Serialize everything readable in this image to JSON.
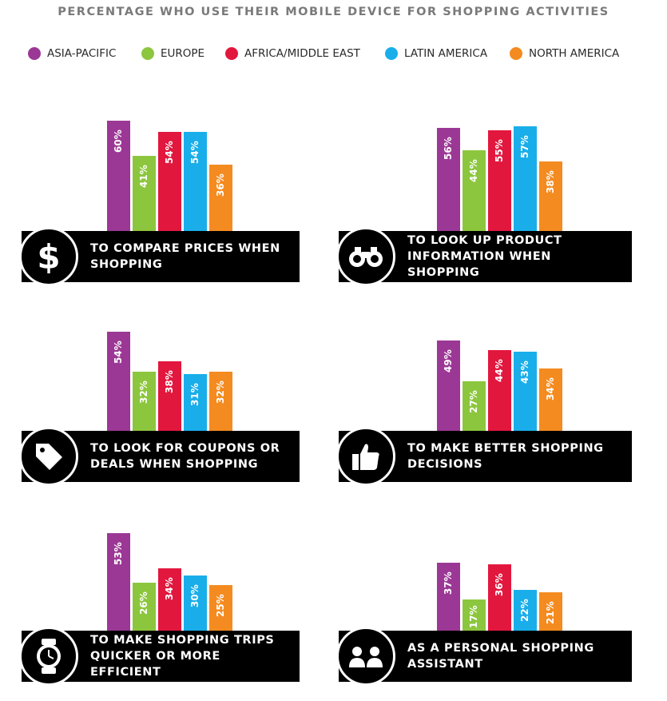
{
  "title": "PERCENTAGE WHO USE THEIR MOBILE DEVICE FOR SHOPPING ACTIVITIES",
  "legend": [
    {
      "label": "ASIA-PACIFIC",
      "color": "#9b3895"
    },
    {
      "label": "EUROPE",
      "color": "#8cc63e"
    },
    {
      "label": "AFRICA/MIDDLE EAST",
      "color": "#e2173e"
    },
    {
      "label": "LATIN AMERICA",
      "color": "#19aeea"
    },
    {
      "label": "NORTH AMERICA",
      "color": "#f48b20"
    }
  ],
  "chart_data": [
    {
      "type": "bar",
      "caption": "TO COMPARE PRICES WHEN SHOPPING",
      "icon": "dollar-icon",
      "categories": [
        "ASIA-PACIFIC",
        "EUROPE",
        "AFRICA/MIDDLE EAST",
        "LATIN AMERICA",
        "NORTH AMERICA"
      ],
      "values": [
        60,
        41,
        54,
        54,
        36
      ],
      "labels": [
        "60%",
        "41%",
        "54%",
        "54%",
        "36%"
      ]
    },
    {
      "type": "bar",
      "caption": "TO LOOK UP PRODUCT INFORMATION WHEN SHOPPING",
      "icon": "binoculars-icon",
      "categories": [
        "ASIA-PACIFIC",
        "EUROPE",
        "AFRICA/MIDDLE EAST",
        "LATIN AMERICA",
        "NORTH AMERICA"
      ],
      "values": [
        56,
        44,
        55,
        57,
        38
      ],
      "labels": [
        "56%",
        "44%",
        "55%",
        "57%",
        "38%"
      ]
    },
    {
      "type": "bar",
      "caption": "TO LOOK FOR COUPONS OR DEALS WHEN SHOPPING",
      "icon": "price-tag-icon",
      "categories": [
        "ASIA-PACIFIC",
        "EUROPE",
        "AFRICA/MIDDLE EAST",
        "LATIN AMERICA",
        "NORTH AMERICA"
      ],
      "values": [
        54,
        32,
        38,
        31,
        32
      ],
      "labels": [
        "54%",
        "32%",
        "38%",
        "31%",
        "32%"
      ]
    },
    {
      "type": "bar",
      "caption": "TO MAKE BETTER SHOPPING DECISIONS",
      "icon": "thumbs-up-icon",
      "categories": [
        "ASIA-PACIFIC",
        "EUROPE",
        "AFRICA/MIDDLE EAST",
        "LATIN AMERICA",
        "NORTH AMERICA"
      ],
      "values": [
        49,
        27,
        44,
        43,
        34
      ],
      "labels": [
        "49%",
        "27%",
        "44%",
        "43%",
        "34%"
      ]
    },
    {
      "type": "bar",
      "caption": "TO MAKE SHOPPING TRIPS QUICKER OR MORE EFFICIENT",
      "icon": "watch-icon",
      "categories": [
        "ASIA-PACIFIC",
        "EUROPE",
        "AFRICA/MIDDLE EAST",
        "LATIN AMERICA",
        "NORTH AMERICA"
      ],
      "values": [
        53,
        26,
        34,
        30,
        25
      ],
      "labels": [
        "53%",
        "26%",
        "34%",
        "30%",
        "25%"
      ]
    },
    {
      "type": "bar",
      "caption": "AS A PERSONAL SHOPPING ASSISTANT",
      "icon": "people-icon",
      "categories": [
        "ASIA-PACIFIC",
        "EUROPE",
        "AFRICA/MIDDLE EAST",
        "LATIN AMERICA",
        "NORTH AMERICA"
      ],
      "values": [
        37,
        17,
        36,
        22,
        21
      ],
      "labels": [
        "37%",
        "17%",
        "36%",
        "22%",
        "21%"
      ]
    }
  ]
}
